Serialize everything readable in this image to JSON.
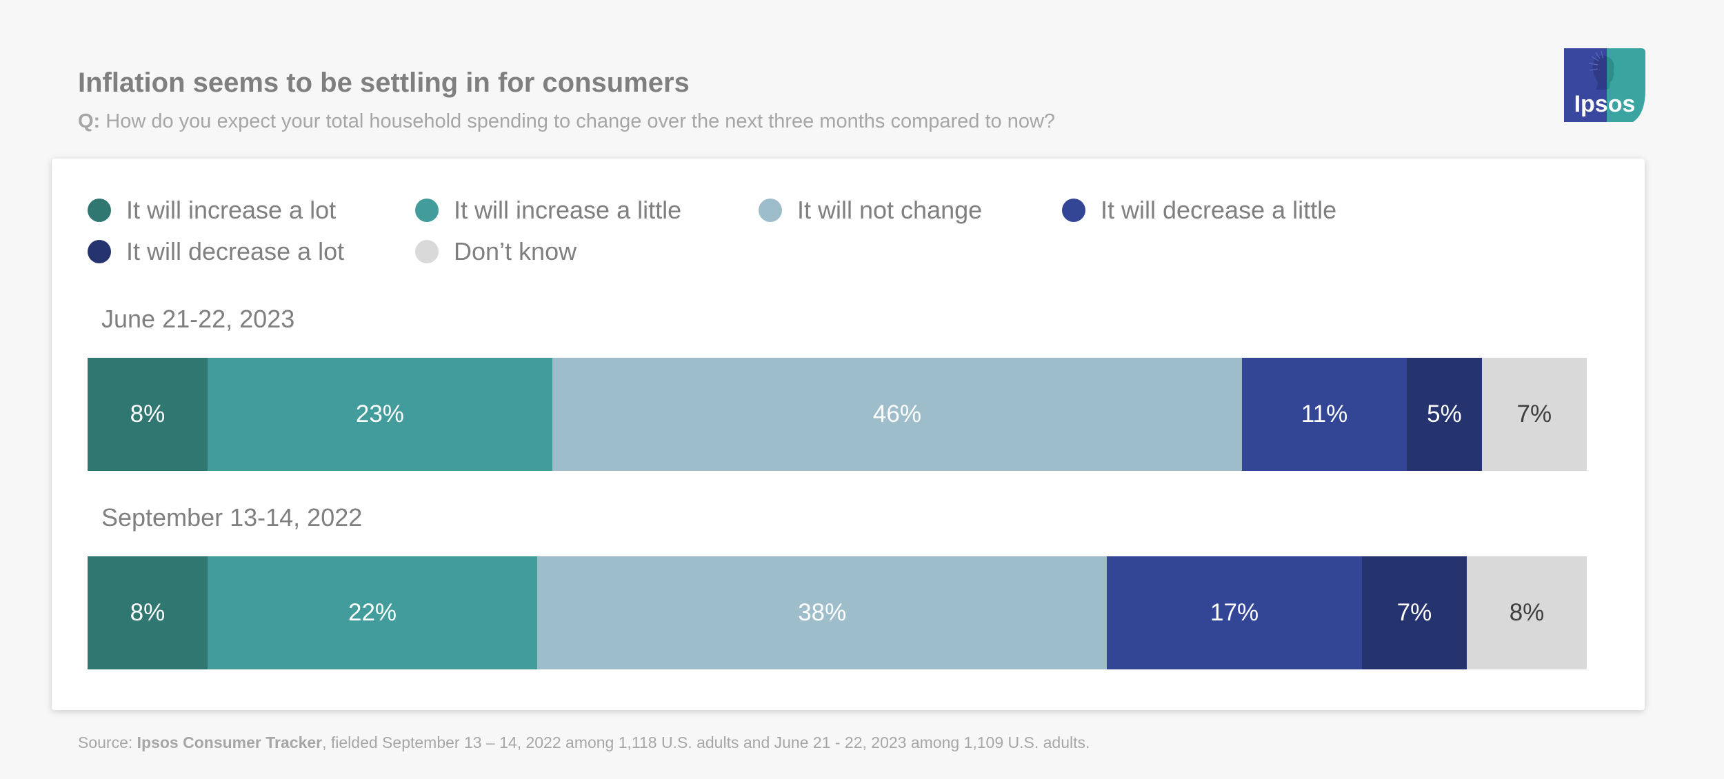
{
  "header": {
    "title": "Inflation seems to be settling in for consumers",
    "question_prefix": "Q:",
    "question_text": "How do you expect your total household spending to change over the next three months compared to now?"
  },
  "logo": {
    "text": "Ipsos",
    "colors": {
      "left": "#3a479e",
      "right": "#3aa5a0"
    }
  },
  "chart_data": {
    "type": "bar",
    "orientation": "horizontal",
    "stacked": true,
    "title": "Inflation seems to be settling in for consumers",
    "categories": [
      "June 21-22, 2023",
      "September 13-14, 2022"
    ],
    "legend_position": "top-left",
    "series": [
      {
        "name": "It will increase a lot",
        "color": "#307772",
        "label_color": "#ffffff",
        "values": [
          8,
          8
        ],
        "labels": [
          "8%",
          "8%"
        ]
      },
      {
        "name": "It will increase a little",
        "color": "#439c9c",
        "label_color": "#ffffff",
        "values": [
          23,
          22
        ],
        "labels": [
          "23%",
          "22%"
        ]
      },
      {
        "name": "It will not change",
        "color": "#9ebdca",
        "label_color": "#ffffff",
        "values": [
          46,
          38
        ],
        "labels": [
          "46%",
          "38%"
        ]
      },
      {
        "name": "It will decrease a little",
        "color": "#334696",
        "label_color": "#ffffff",
        "values": [
          11,
          17
        ],
        "labels": [
          "11%",
          "17%"
        ]
      },
      {
        "name": "It will decrease a lot",
        "color": "#25336e",
        "label_color": "#ffffff",
        "values": [
          5,
          7
        ],
        "labels": [
          "5%",
          "7%"
        ]
      },
      {
        "name": "Don’t know",
        "color": "#d9d9d9",
        "label_color": "#3f3f3f",
        "values": [
          7,
          8
        ],
        "labels": [
          "7%",
          "8%"
        ]
      }
    ]
  },
  "footer": {
    "source_prefix": "Source:",
    "source_name": "Ipsos Consumer Tracker",
    "source_text": ", fielded September 13 – 14, 2022 among 1,118 U.S. adults and June 21 - 22, 2023 among 1,109 U.S. adults."
  }
}
